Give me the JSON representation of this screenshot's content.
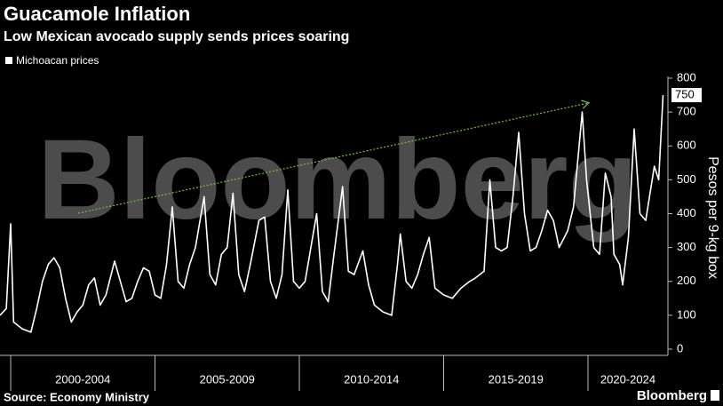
{
  "chart_data": {
    "type": "line",
    "title": "Guacamole Inflation",
    "subtitle": "Low Mexican avocado supply sends prices soaring",
    "y_label": "Pesos per 9-kg box",
    "source": "Source: Economy Ministry",
    "watermark": "Bloomberg",
    "logo": "Bloomberg",
    "name": "Michoacan prices",
    "color": "#ffffff",
    "categories": [
      "2000-2004",
      "2005-2009",
      "2010-2014",
      "2015-2019",
      "2020-2024"
    ],
    "xlim": [
      1999.63,
      2022.77
    ],
    "xticks": [
      2000,
      2005,
      2010,
      2015,
      2020
    ],
    "ylim": [
      0,
      800
    ],
    "yticks": [
      0,
      100,
      200,
      300,
      400,
      500,
      600,
      700,
      800
    ],
    "x": [
      1999.63,
      1999.85,
      2000.0,
      2000.1,
      2000.4,
      2000.7,
      2000.9,
      2001.1,
      2001.3,
      2001.5,
      2001.7,
      2001.9,
      2002.1,
      2002.3,
      2002.5,
      2002.7,
      2002.9,
      2003.1,
      2003.3,
      2003.6,
      2003.8,
      2004.0,
      2004.2,
      2004.4,
      2004.6,
      2004.8,
      2005.0,
      2005.2,
      2005.4,
      2005.6,
      2005.8,
      2006.0,
      2006.2,
      2006.4,
      2006.7,
      2006.9,
      2007.1,
      2007.3,
      2007.5,
      2007.7,
      2007.9,
      2008.1,
      2008.3,
      2008.6,
      2008.8,
      2009.0,
      2009.2,
      2009.4,
      2009.6,
      2009.8,
      2010.0,
      2010.2,
      2010.4,
      2010.6,
      2010.8,
      2011.0,
      2011.2,
      2011.5,
      2011.7,
      2011.9,
      2012.2,
      2012.4,
      2012.6,
      2012.9,
      2013.2,
      2013.4,
      2013.5,
      2013.7,
      2013.9,
      2014.1,
      2014.3,
      2014.5,
      2014.7,
      2015.0,
      2015.3,
      2015.6,
      2015.9,
      2016.1,
      2016.4,
      2016.6,
      2016.8,
      2017.0,
      2017.2,
      2017.4,
      2017.6,
      2017.8,
      2018.0,
      2018.2,
      2018.4,
      2018.6,
      2018.8,
      2019.0,
      2019.3,
      2019.5,
      2019.8,
      2019.95,
      2020.2,
      2020.4,
      2020.6,
      2020.8,
      2020.9,
      2021.1,
      2021.2,
      2021.4,
      2021.6,
      2021.8,
      2022.0,
      2022.3,
      2022.45,
      2022.6
    ],
    "values": [
      100,
      120,
      370,
      80,
      60,
      50,
      120,
      200,
      250,
      270,
      240,
      150,
      80,
      110,
      130,
      190,
      210,
      130,
      160,
      260,
      200,
      140,
      150,
      200,
      240,
      230,
      160,
      150,
      250,
      420,
      200,
      180,
      250,
      300,
      450,
      220,
      190,
      280,
      300,
      460,
      220,
      170,
      250,
      380,
      390,
      200,
      150,
      220,
      470,
      200,
      180,
      200,
      300,
      400,
      170,
      140,
      280,
      480,
      230,
      220,
      290,
      190,
      130,
      110,
      100,
      250,
      340,
      200,
      180,
      220,
      280,
      330,
      180,
      160,
      150,
      180,
      200,
      210,
      230,
      500,
      300,
      290,
      300,
      450,
      640,
      400,
      290,
      300,
      350,
      410,
      380,
      300,
      350,
      420,
      700,
      500,
      300,
      280,
      520,
      450,
      280,
      250,
      190,
      330,
      650,
      400,
      380,
      540,
      500,
      750
    ]
  }
}
